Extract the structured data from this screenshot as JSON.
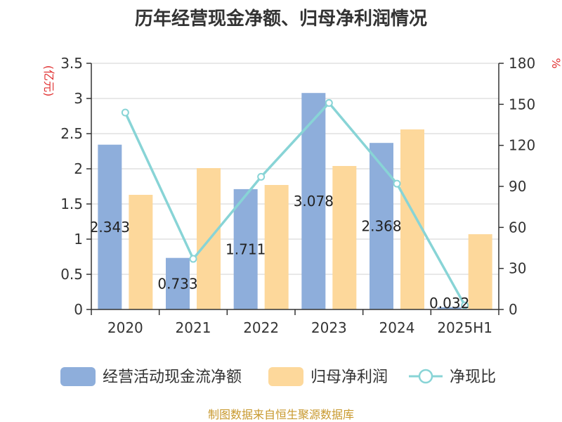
{
  "title": "历年经营现金净额、归母净利润情况",
  "source": "制图数据来自恒生聚源数据库",
  "colors": {
    "cash_flow": "#8eaedb",
    "net_profit": "#fdd89b",
    "ratio": "#88d4d6",
    "unit": "#e03030",
    "source": "#c8992e"
  },
  "chart_data": {
    "type": "bar",
    "title": "历年经营现金净额、归母净利润情况",
    "categories": [
      "2020",
      "2021",
      "2022",
      "2023",
      "2024",
      "2025H1"
    ],
    "left_axis": {
      "unit": "(亿元)",
      "range": [
        0,
        3.5
      ],
      "ticks": [
        "0",
        "0.5",
        "1",
        "1.5",
        "2",
        "2.5",
        "3",
        "3.5"
      ]
    },
    "right_axis": {
      "unit": "%",
      "range": [
        0,
        180
      ],
      "ticks": [
        "0",
        "30",
        "60",
        "90",
        "120",
        "150",
        "180"
      ]
    },
    "series": [
      {
        "name": "经营活动现金流净额",
        "type": "bar",
        "axis": "left",
        "values": [
          2.343,
          0.733,
          1.711,
          3.078,
          2.368,
          0.032
        ],
        "labels": [
          "2.343",
          "0.733",
          "1.711",
          "3.078",
          "2.368",
          "0.032"
        ]
      },
      {
        "name": "归母净利润",
        "type": "bar",
        "axis": "left",
        "values": [
          1.63,
          2.01,
          1.77,
          2.04,
          2.56,
          1.07
        ]
      },
      {
        "name": "净现比",
        "type": "line",
        "axis": "right",
        "values": [
          144,
          37,
          97,
          151,
          92,
          3
        ]
      }
    ],
    "grid": true,
    "legend_position": "bottom"
  }
}
